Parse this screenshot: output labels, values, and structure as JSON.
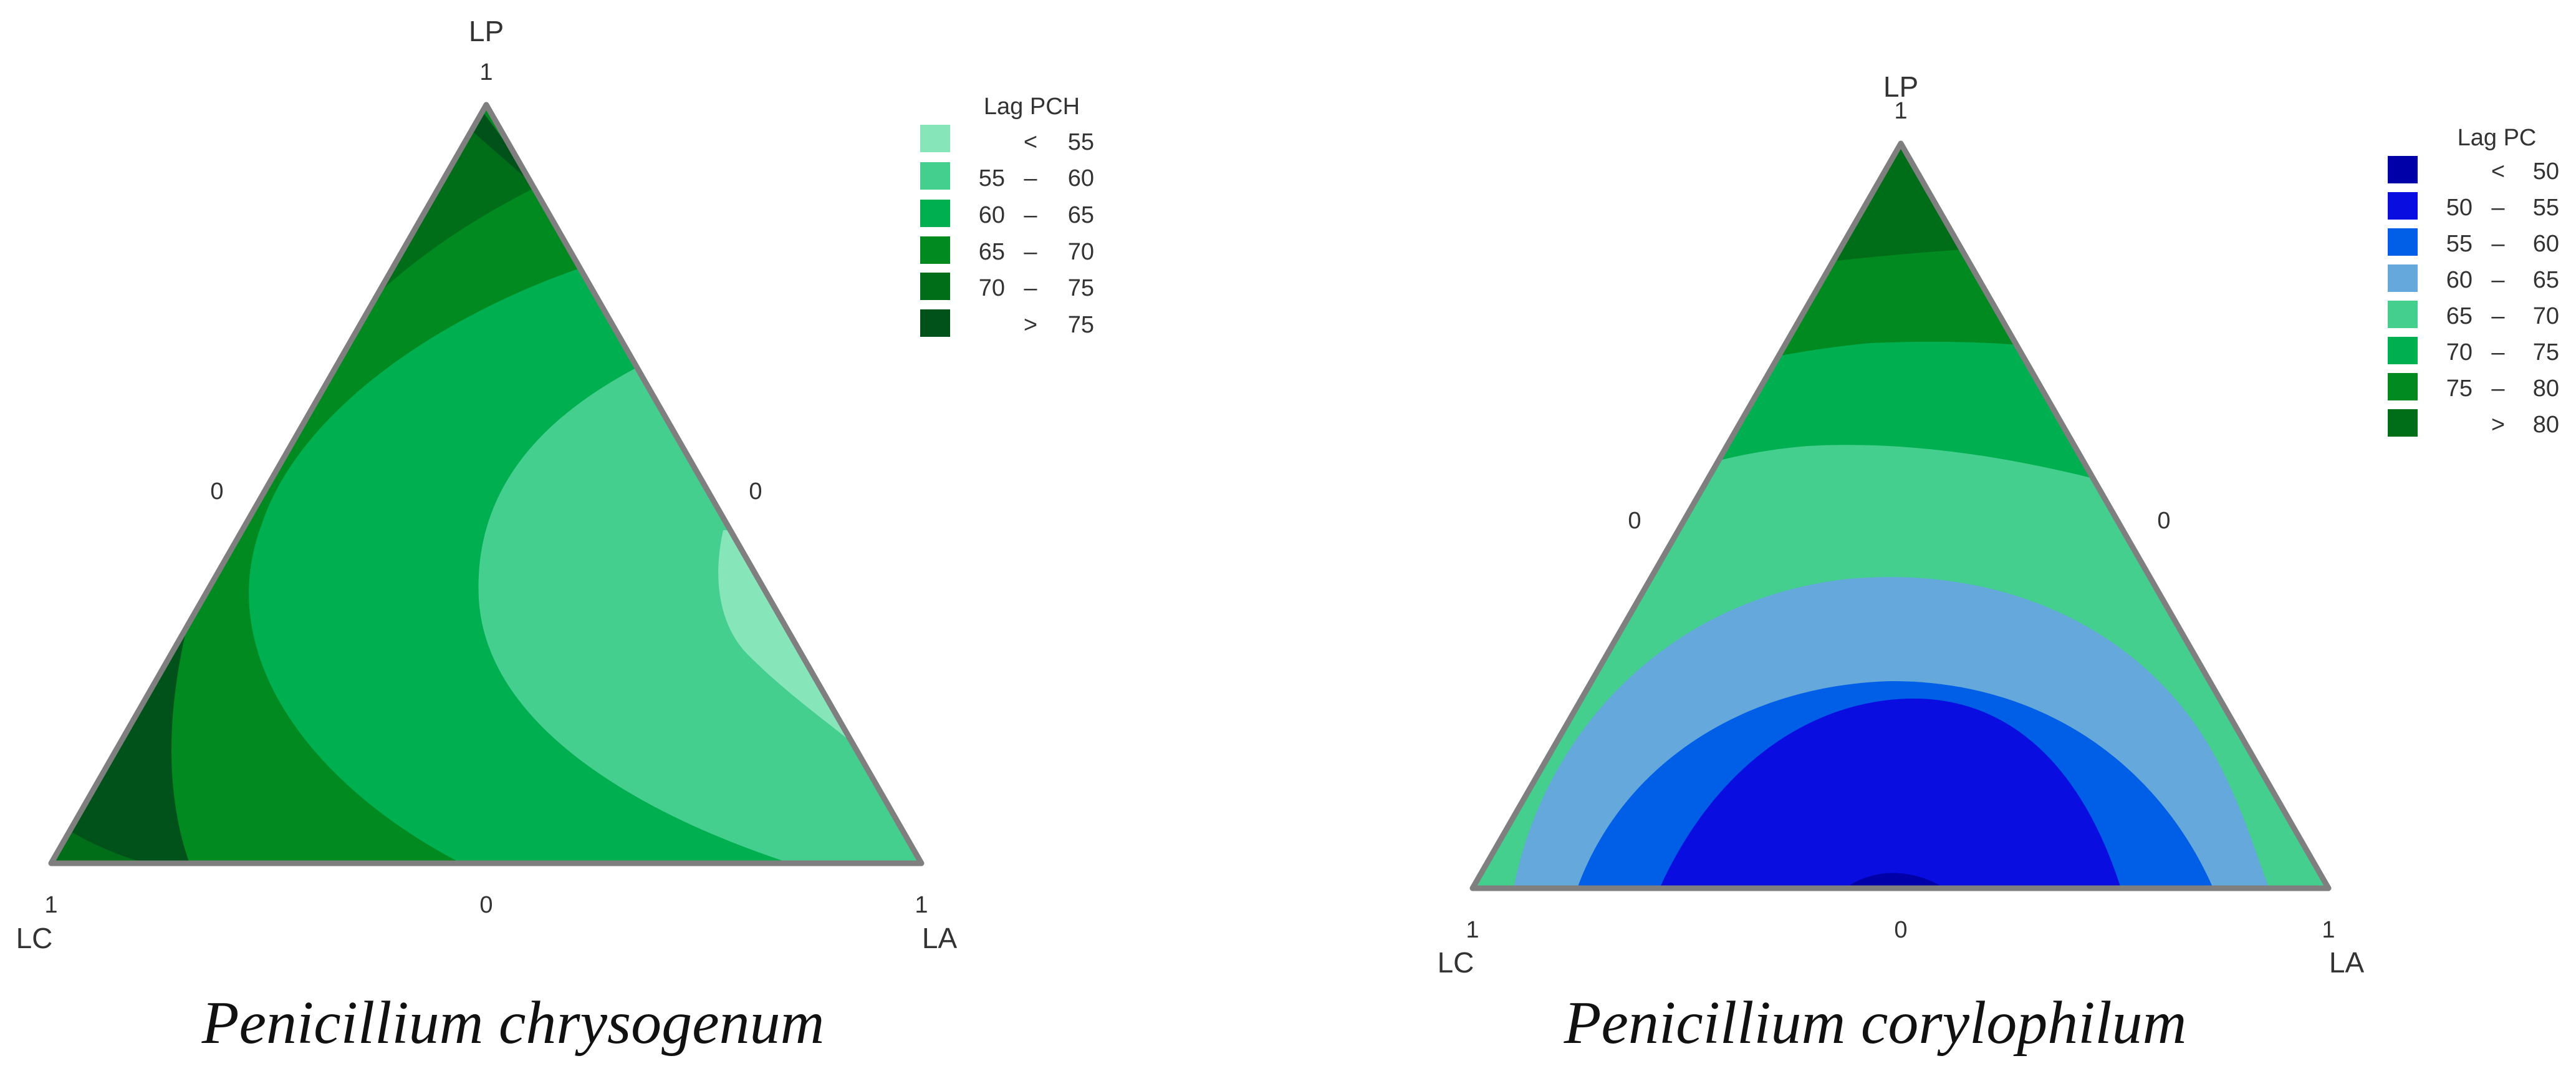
{
  "chart_data": [
    {
      "type": "ternary-contour",
      "caption": "Penicillium chrysogenum",
      "vertices": {
        "top": {
          "label": "LP",
          "value": "1"
        },
        "left": {
          "label": "LC",
          "value": "1"
        },
        "right": {
          "label": "LA",
          "value": "1"
        }
      },
      "edge_ticks": {
        "left": "0",
        "right": "0",
        "bottom": "0"
      },
      "legend": {
        "title": "Lag PCH",
        "placement": "top-right",
        "entries": [
          {
            "op": "<",
            "low": "",
            "high": "55",
            "color": "#86e5b9"
          },
          {
            "op": "–",
            "low": "55",
            "high": "60",
            "color": "#44cf8e"
          },
          {
            "op": "–",
            "low": "60",
            "high": "65",
            "color": "#00af50"
          },
          {
            "op": "–",
            "low": "65",
            "high": "70",
            "color": "#008a20"
          },
          {
            "op": "–",
            "low": "70",
            "high": "75",
            "color": "#006d18"
          },
          {
            "op": ">",
            "low": "",
            "high": "75",
            "color": "#00521a"
          }
        ]
      },
      "regions_low_to_high": [
        "< 55",
        "55 – 60",
        "60 – 65",
        "65 – 70",
        "70 – 75",
        "> 75"
      ]
    },
    {
      "type": "ternary-contour",
      "caption": "Penicillium corylophilum",
      "vertices": {
        "top": {
          "label": "LP",
          "value": "1"
        },
        "left": {
          "label": "LC",
          "value": "1"
        },
        "right": {
          "label": "LA",
          "value": "1"
        }
      },
      "edge_ticks": {
        "left": "0",
        "right": "0",
        "bottom": "0"
      },
      "legend": {
        "title": "Lag PC",
        "placement": "top-right",
        "entries": [
          {
            "op": "<",
            "low": "",
            "high": "50",
            "color": "#0000a8"
          },
          {
            "op": "–",
            "low": "50",
            "high": "55",
            "color": "#0a0de0"
          },
          {
            "op": "–",
            "low": "55",
            "high": "60",
            "color": "#005fe6"
          },
          {
            "op": "–",
            "low": "60",
            "high": "65",
            "color": "#64a8dc"
          },
          {
            "op": "–",
            "low": "65",
            "high": "70",
            "color": "#44cf8e"
          },
          {
            "op": "–",
            "low": "70",
            "high": "75",
            "color": "#00af50"
          },
          {
            "op": "–",
            "low": "75",
            "high": "80",
            "color": "#008a20"
          },
          {
            "op": ">",
            "low": "",
            "high": "80",
            "color": "#006d18"
          }
        ]
      },
      "regions_low_to_high": [
        "< 50",
        "50 – 55",
        "55 – 60",
        "60 – 65",
        "65 – 70",
        "70 – 75",
        "75 – 80",
        "> 80"
      ]
    }
  ]
}
